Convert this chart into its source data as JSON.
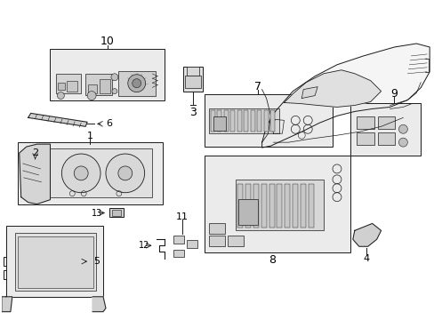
{
  "bg_color": "#ffffff",
  "line_color": "#1a1a1a",
  "fig_width": 4.89,
  "fig_height": 3.6,
  "dpi": 100,
  "label_fs": 8,
  "lw": 0.7,
  "fill_light": "#e8e8e8",
  "fill_mid": "#d0d0d0"
}
